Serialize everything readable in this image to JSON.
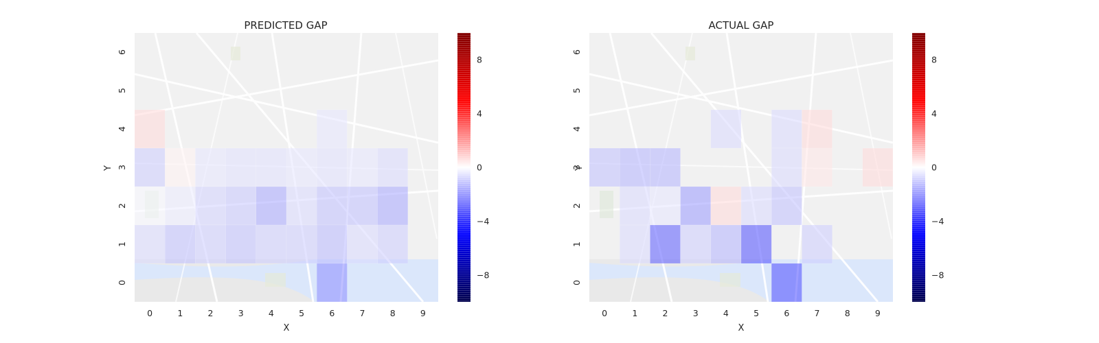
{
  "chart_data": [
    {
      "type": "heatmap",
      "title": "PREDICTED GAP",
      "xlabel": "X",
      "ylabel": "Y",
      "x_ticks": [
        "0",
        "1",
        "2",
        "3",
        "4",
        "5",
        "6",
        "7",
        "8",
        "9"
      ],
      "y_ticks": [
        "0",
        "1",
        "2",
        "3",
        "4",
        "5",
        "6"
      ],
      "colorbar": {
        "vmin": -10,
        "vmax": 10,
        "ticks": [
          "8",
          "4",
          "0",
          "−4",
          "−8"
        ],
        "tick_values": [
          8,
          4,
          0,
          -4,
          -8
        ],
        "colormap": "seismic"
      },
      "cells": [
        {
          "x": 0,
          "y": 4,
          "value": 1.5
        },
        {
          "x": 6,
          "y": 4,
          "value": -1.0
        },
        {
          "x": 0,
          "y": 3,
          "value": -2.0
        },
        {
          "x": 1,
          "y": 3,
          "value": 0.5
        },
        {
          "x": 2,
          "y": 3,
          "value": -1.0
        },
        {
          "x": 3,
          "y": 3,
          "value": -1.2
        },
        {
          "x": 4,
          "y": 3,
          "value": -1.2
        },
        {
          "x": 5,
          "y": 3,
          "value": -1.0
        },
        {
          "x": 6,
          "y": 3,
          "value": -1.2
        },
        {
          "x": 7,
          "y": 3,
          "value": -1.0
        },
        {
          "x": 8,
          "y": 3,
          "value": -1.5
        },
        {
          "x": 0,
          "y": 2,
          "value": -0.3
        },
        {
          "x": 1,
          "y": 2,
          "value": -0.8
        },
        {
          "x": 2,
          "y": 2,
          "value": -1.8
        },
        {
          "x": 3,
          "y": 2,
          "value": -2.2
        },
        {
          "x": 4,
          "y": 2,
          "value": -3.5
        },
        {
          "x": 5,
          "y": 2,
          "value": -1.5
        },
        {
          "x": 6,
          "y": 2,
          "value": -2.5
        },
        {
          "x": 7,
          "y": 2,
          "value": -2.5
        },
        {
          "x": 8,
          "y": 2,
          "value": -3.5
        },
        {
          "x": 0,
          "y": 1,
          "value": -1.5
        },
        {
          "x": 1,
          "y": 1,
          "value": -2.5
        },
        {
          "x": 2,
          "y": 1,
          "value": -2.0
        },
        {
          "x": 3,
          "y": 1,
          "value": -2.5
        },
        {
          "x": 4,
          "y": 1,
          "value": -2.0
        },
        {
          "x": 5,
          "y": 1,
          "value": -2.0
        },
        {
          "x": 6,
          "y": 1,
          "value": -2.8
        },
        {
          "x": 7,
          "y": 1,
          "value": -1.5
        },
        {
          "x": 8,
          "y": 1,
          "value": -2.0
        },
        {
          "x": 6,
          "y": 0,
          "value": -4.5
        }
      ]
    },
    {
      "type": "heatmap",
      "title": "ACTUAL GAP",
      "xlabel": "X",
      "ylabel": "Y",
      "x_ticks": [
        "0",
        "1",
        "2",
        "3",
        "4",
        "5",
        "6",
        "7",
        "8",
        "9"
      ],
      "y_ticks": [
        "0",
        "1",
        "2",
        "3",
        "4",
        "5",
        "6"
      ],
      "colorbar": {
        "vmin": -10,
        "vmax": 10,
        "ticks": [
          "8",
          "4",
          "0",
          "−4",
          "−8"
        ],
        "tick_values": [
          8,
          4,
          0,
          -4,
          -8
        ],
        "colormap": "seismic"
      },
      "cells": [
        {
          "x": 4,
          "y": 4,
          "value": -1.5
        },
        {
          "x": 6,
          "y": 4,
          "value": -1.5
        },
        {
          "x": 7,
          "y": 4,
          "value": 1.5
        },
        {
          "x": 0,
          "y": 3,
          "value": -2.5
        },
        {
          "x": 1,
          "y": 3,
          "value": -3.0
        },
        {
          "x": 2,
          "y": 3,
          "value": -3.0
        },
        {
          "x": 6,
          "y": 3,
          "value": -1.5
        },
        {
          "x": 7,
          "y": 3,
          "value": 1.0
        },
        {
          "x": 9,
          "y": 3,
          "value": 1.5
        },
        {
          "x": 1,
          "y": 2,
          "value": -1.5
        },
        {
          "x": 2,
          "y": 2,
          "value": -1.0
        },
        {
          "x": 3,
          "y": 2,
          "value": -4.0
        },
        {
          "x": 4,
          "y": 2,
          "value": 1.5
        },
        {
          "x": 5,
          "y": 2,
          "value": -1.5
        },
        {
          "x": 6,
          "y": 2,
          "value": -2.5
        },
        {
          "x": 1,
          "y": 1,
          "value": -1.5
        },
        {
          "x": 2,
          "y": 1,
          "value": -6.5
        },
        {
          "x": 3,
          "y": 1,
          "value": -2.0
        },
        {
          "x": 4,
          "y": 1,
          "value": -3.0
        },
        {
          "x": 5,
          "y": 1,
          "value": -7.0
        },
        {
          "x": 7,
          "y": 1,
          "value": -2.0
        },
        {
          "x": 6,
          "y": 0,
          "value": -7.0
        }
      ]
    }
  ]
}
